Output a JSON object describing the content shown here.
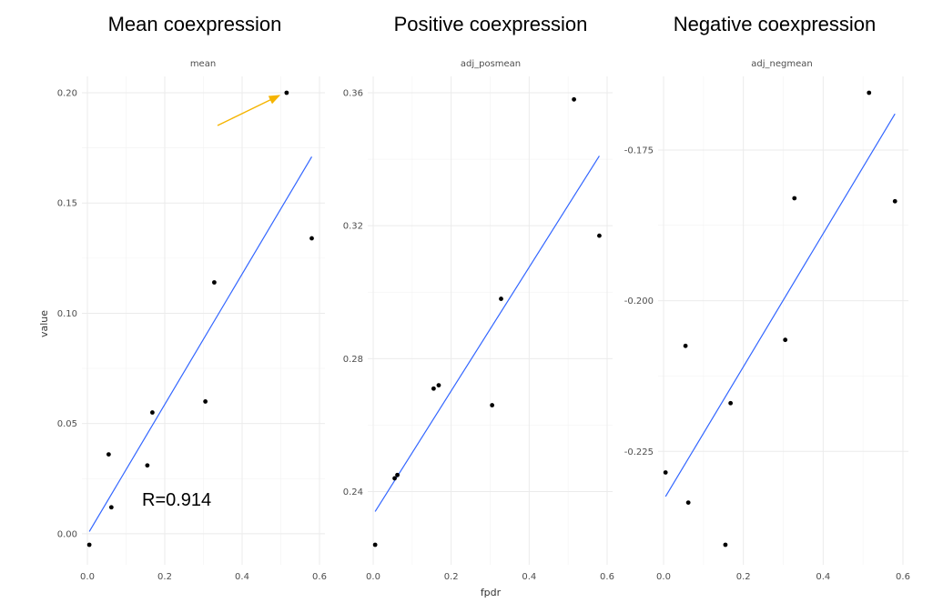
{
  "headings": {
    "left": "Mean coexpression",
    "middle": "Positive coexpression",
    "right": "Negative coexpression"
  },
  "annotation": {
    "text": "R=0.914",
    "arrow_color": "#f5b400"
  },
  "colors": {
    "points": "#000000",
    "fit_line": "#3366ff"
  },
  "chart_data": [
    {
      "type": "scatter",
      "title": "mean",
      "xlabel": "fpdr",
      "ylabel": "value",
      "xlim": [
        0,
        0.6
      ],
      "ylim": [
        -0.005,
        0.2
      ],
      "xticks": [
        0.0,
        0.2,
        0.4,
        0.6
      ],
      "xtick_labels": [
        "0.0",
        "0.2",
        "0.4",
        "0.6"
      ],
      "yticks": [
        0.0,
        0.05,
        0.1,
        0.15,
        0.2
      ],
      "ytick_labels": [
        "0.00",
        "0.05",
        "0.10",
        "0.15",
        "0.20"
      ],
      "x": [
        0.005,
        0.055,
        0.062,
        0.155,
        0.168,
        0.305,
        0.328,
        0.515,
        0.58
      ],
      "y": [
        -0.005,
        0.036,
        0.012,
        0.031,
        0.055,
        0.06,
        0.114,
        0.2,
        0.134
      ],
      "fit_line": {
        "x": [
          0.005,
          0.58
        ],
        "y": [
          0.001,
          0.171
        ]
      },
      "arrow_target": {
        "x": 0.515,
        "y": 0.2
      }
    },
    {
      "type": "scatter",
      "title": "adj_posmean",
      "xlabel": "fpdr",
      "ylabel": "value",
      "xlim": [
        0,
        0.6
      ],
      "ylim": [
        0.224,
        0.36
      ],
      "xticks": [
        0.0,
        0.2,
        0.4,
        0.6
      ],
      "xtick_labels": [
        "0.0",
        "0.2",
        "0.4",
        "0.6"
      ],
      "yticks": [
        0.24,
        0.28,
        0.32,
        0.36
      ],
      "ytick_labels": [
        "0.24",
        "0.28",
        "0.32",
        "0.36"
      ],
      "x": [
        0.005,
        0.055,
        0.062,
        0.155,
        0.168,
        0.305,
        0.328,
        0.515,
        0.58
      ],
      "y": [
        0.224,
        0.244,
        0.245,
        0.271,
        0.272,
        0.266,
        0.298,
        0.358,
        0.317
      ],
      "fit_line": {
        "x": [
          0.005,
          0.58
        ],
        "y": [
          0.234,
          0.341
        ]
      }
    },
    {
      "type": "scatter",
      "title": "adj_negmean",
      "xlabel": "fpdr",
      "ylabel": "value",
      "xlim": [
        0,
        0.6
      ],
      "ylim": [
        -0.2405,
        -0.1655
      ],
      "xticks": [
        0.0,
        0.2,
        0.4,
        0.6
      ],
      "xtick_labels": [
        "0.0",
        "0.2",
        "0.4",
        "0.6"
      ],
      "yticks": [
        -0.175,
        -0.2,
        -0.225
      ],
      "ytick_labels": [
        "-0.175",
        "-0.200",
        "-0.225"
      ],
      "x": [
        0.005,
        0.055,
        0.062,
        0.155,
        0.168,
        0.305,
        0.328,
        0.515,
        0.58
      ],
      "y": [
        -0.2285,
        -0.2075,
        -0.2335,
        -0.2405,
        -0.217,
        -0.2065,
        -0.183,
        -0.1655,
        -0.1835
      ],
      "fit_line": {
        "x": [
          0.005,
          0.58
        ],
        "y": [
          -0.2325,
          -0.169
        ]
      }
    }
  ]
}
